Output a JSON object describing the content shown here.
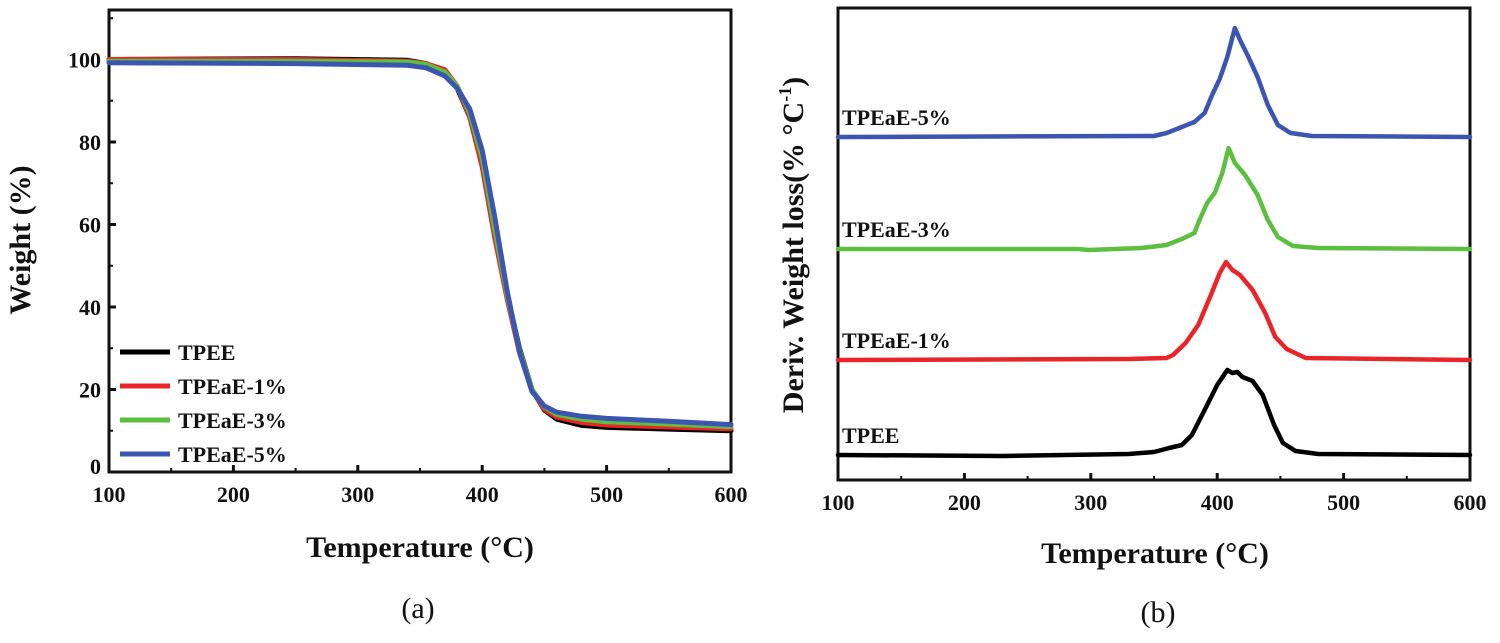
{
  "colors": {
    "TPEE": "#000000",
    "TPEaE-1%": "#e8262a",
    "TPEaE-3%": "#5cbf3f",
    "TPEaE-5%": "#3c55b0"
  },
  "chart_data": [
    {
      "type": "line",
      "panel_label": "(a)",
      "xlabel": "Temperature (°C)",
      "ylabel": "Weight (%)",
      "xlim": [
        100,
        600
      ],
      "ylim": [
        0,
        112
      ],
      "xticks": [
        100,
        200,
        300,
        400,
        500,
        600
      ],
      "yticks": [
        0,
        20,
        40,
        60,
        80,
        100
      ],
      "grid": false,
      "legend": "bottom-left",
      "series": [
        {
          "name": "TPEE",
          "color": "#000000",
          "points": [
            [
              100,
              100
            ],
            [
              250,
              100.2
            ],
            [
              340,
              99.8
            ],
            [
              355,
              99
            ],
            [
              370,
              97
            ],
            [
              380,
              93
            ],
            [
              390,
              86
            ],
            [
              400,
              75
            ],
            [
              410,
              58
            ],
            [
              420,
              43
            ],
            [
              430,
              30
            ],
            [
              440,
              20
            ],
            [
              450,
              15
            ],
            [
              460,
              12.8
            ],
            [
              480,
              11.3
            ],
            [
              500,
              10.8
            ],
            [
              550,
              10.4
            ],
            [
              600,
              10
            ]
          ]
        },
        {
          "name": "TPEaE-1%",
          "color": "#e8262a",
          "points": [
            [
              100,
              100
            ],
            [
              250,
              100
            ],
            [
              340,
              99.6
            ],
            [
              355,
              99
            ],
            [
              370,
              97.5
            ],
            [
              380,
              93.5
            ],
            [
              390,
              86
            ],
            [
              400,
              74
            ],
            [
              410,
              57
            ],
            [
              420,
              42
            ],
            [
              430,
              29
            ],
            [
              440,
              20
            ],
            [
              450,
              15.2
            ],
            [
              460,
              13.3
            ],
            [
              480,
              12
            ],
            [
              500,
              11.4
            ],
            [
              550,
              10.9
            ],
            [
              600,
              10.5
            ]
          ]
        },
        {
          "name": "TPEaE-3%",
          "color": "#5cbf3f",
          "points": [
            [
              100,
              99.6
            ],
            [
              250,
              99.6
            ],
            [
              340,
              99.4
            ],
            [
              355,
              98.8
            ],
            [
              370,
              97
            ],
            [
              380,
              93.5
            ],
            [
              390,
              87
            ],
            [
              400,
              76
            ],
            [
              410,
              59
            ],
            [
              420,
              43
            ],
            [
              430,
              29.5
            ],
            [
              440,
              20
            ],
            [
              450,
              15.8
            ],
            [
              460,
              14
            ],
            [
              480,
              12.8
            ],
            [
              500,
              12.2
            ],
            [
              550,
              11.6
            ],
            [
              600,
              11
            ]
          ]
        },
        {
          "name": "TPEaE-5%",
          "color": "#3c55b0",
          "points": [
            [
              100,
              99.2
            ],
            [
              250,
              99
            ],
            [
              340,
              98.6
            ],
            [
              355,
              98
            ],
            [
              370,
              96
            ],
            [
              380,
              93
            ],
            [
              390,
              88
            ],
            [
              400,
              78
            ],
            [
              410,
              62
            ],
            [
              420,
              44
            ],
            [
              430,
              29
            ],
            [
              440,
              19.5
            ],
            [
              450,
              16
            ],
            [
              460,
              14.5
            ],
            [
              480,
              13.5
            ],
            [
              500,
              13
            ],
            [
              550,
              12.3
            ],
            [
              600,
              11.5
            ]
          ]
        }
      ]
    },
    {
      "type": "line",
      "panel_label": "(b)",
      "xlabel": "Temperature (°C)",
      "ylabel": "Deriv. Weight loss(% °C",
      "ylabel_sup": "-1",
      "ylabel_close": ")",
      "xlim": [
        100,
        600
      ],
      "ylim": [
        -0.25,
        4.47
      ],
      "xticks": [
        100,
        200,
        300,
        400,
        500,
        600
      ],
      "yticks": [],
      "grid": false,
      "legend": "inline-left",
      "series": [
        {
          "name": "TPEE",
          "color": "#000000",
          "points": [
            [
              100,
              0
            ],
            [
              230,
              -0.01
            ],
            [
              330,
              0.01
            ],
            [
              350,
              0.03
            ],
            [
              362,
              0.07
            ],
            [
              372,
              0.1
            ],
            [
              380,
              0.2
            ],
            [
              390,
              0.45
            ],
            [
              400,
              0.7
            ],
            [
              408,
              0.85
            ],
            [
              412,
              0.82
            ],
            [
              416,
              0.83
            ],
            [
              420,
              0.78
            ],
            [
              428,
              0.74
            ],
            [
              436,
              0.6
            ],
            [
              445,
              0.3
            ],
            [
              452,
              0.12
            ],
            [
              462,
              0.04
            ],
            [
              480,
              0.01
            ],
            [
              600,
              0
            ]
          ]
        },
        {
          "name": "TPEaE-1%",
          "color": "#e8262a",
          "points": [
            [
              100,
              0.95
            ],
            [
              330,
              0.96
            ],
            [
              360,
              0.97
            ],
            [
              365,
              1.0
            ],
            [
              375,
              1.12
            ],
            [
              385,
              1.3
            ],
            [
              395,
              1.6
            ],
            [
              402,
              1.82
            ],
            [
              407,
              1.93
            ],
            [
              412,
              1.85
            ],
            [
              418,
              1.8
            ],
            [
              428,
              1.65
            ],
            [
              438,
              1.42
            ],
            [
              446,
              1.18
            ],
            [
              455,
              1.06
            ],
            [
              470,
              0.97
            ],
            [
              600,
              0.95
            ]
          ]
        },
        {
          "name": "TPEaE-3%",
          "color": "#5cbf3f",
          "points": [
            [
              100,
              2.06
            ],
            [
              290,
              2.06
            ],
            [
              298,
              2.05
            ],
            [
              340,
              2.07
            ],
            [
              360,
              2.1
            ],
            [
              372,
              2.16
            ],
            [
              382,
              2.22
            ],
            [
              386,
              2.35
            ],
            [
              392,
              2.52
            ],
            [
              398,
              2.62
            ],
            [
              404,
              2.82
            ],
            [
              409,
              3.07
            ],
            [
              414,
              2.92
            ],
            [
              422,
              2.8
            ],
            [
              432,
              2.6
            ],
            [
              440,
              2.35
            ],
            [
              448,
              2.18
            ],
            [
              460,
              2.09
            ],
            [
              480,
              2.07
            ],
            [
              600,
              2.06
            ]
          ]
        },
        {
          "name": "TPEaE-5%",
          "color": "#3c55b0",
          "points": [
            [
              100,
              3.18
            ],
            [
              350,
              3.19
            ],
            [
              360,
              3.22
            ],
            [
              372,
              3.28
            ],
            [
              382,
              3.33
            ],
            [
              390,
              3.42
            ],
            [
              396,
              3.6
            ],
            [
              402,
              3.76
            ],
            [
              408,
              3.98
            ],
            [
              414,
              4.27
            ],
            [
              418,
              4.15
            ],
            [
              424,
              4.0
            ],
            [
              432,
              3.78
            ],
            [
              440,
              3.5
            ],
            [
              448,
              3.3
            ],
            [
              458,
              3.22
            ],
            [
              475,
              3.19
            ],
            [
              600,
              3.18
            ]
          ]
        }
      ]
    }
  ]
}
